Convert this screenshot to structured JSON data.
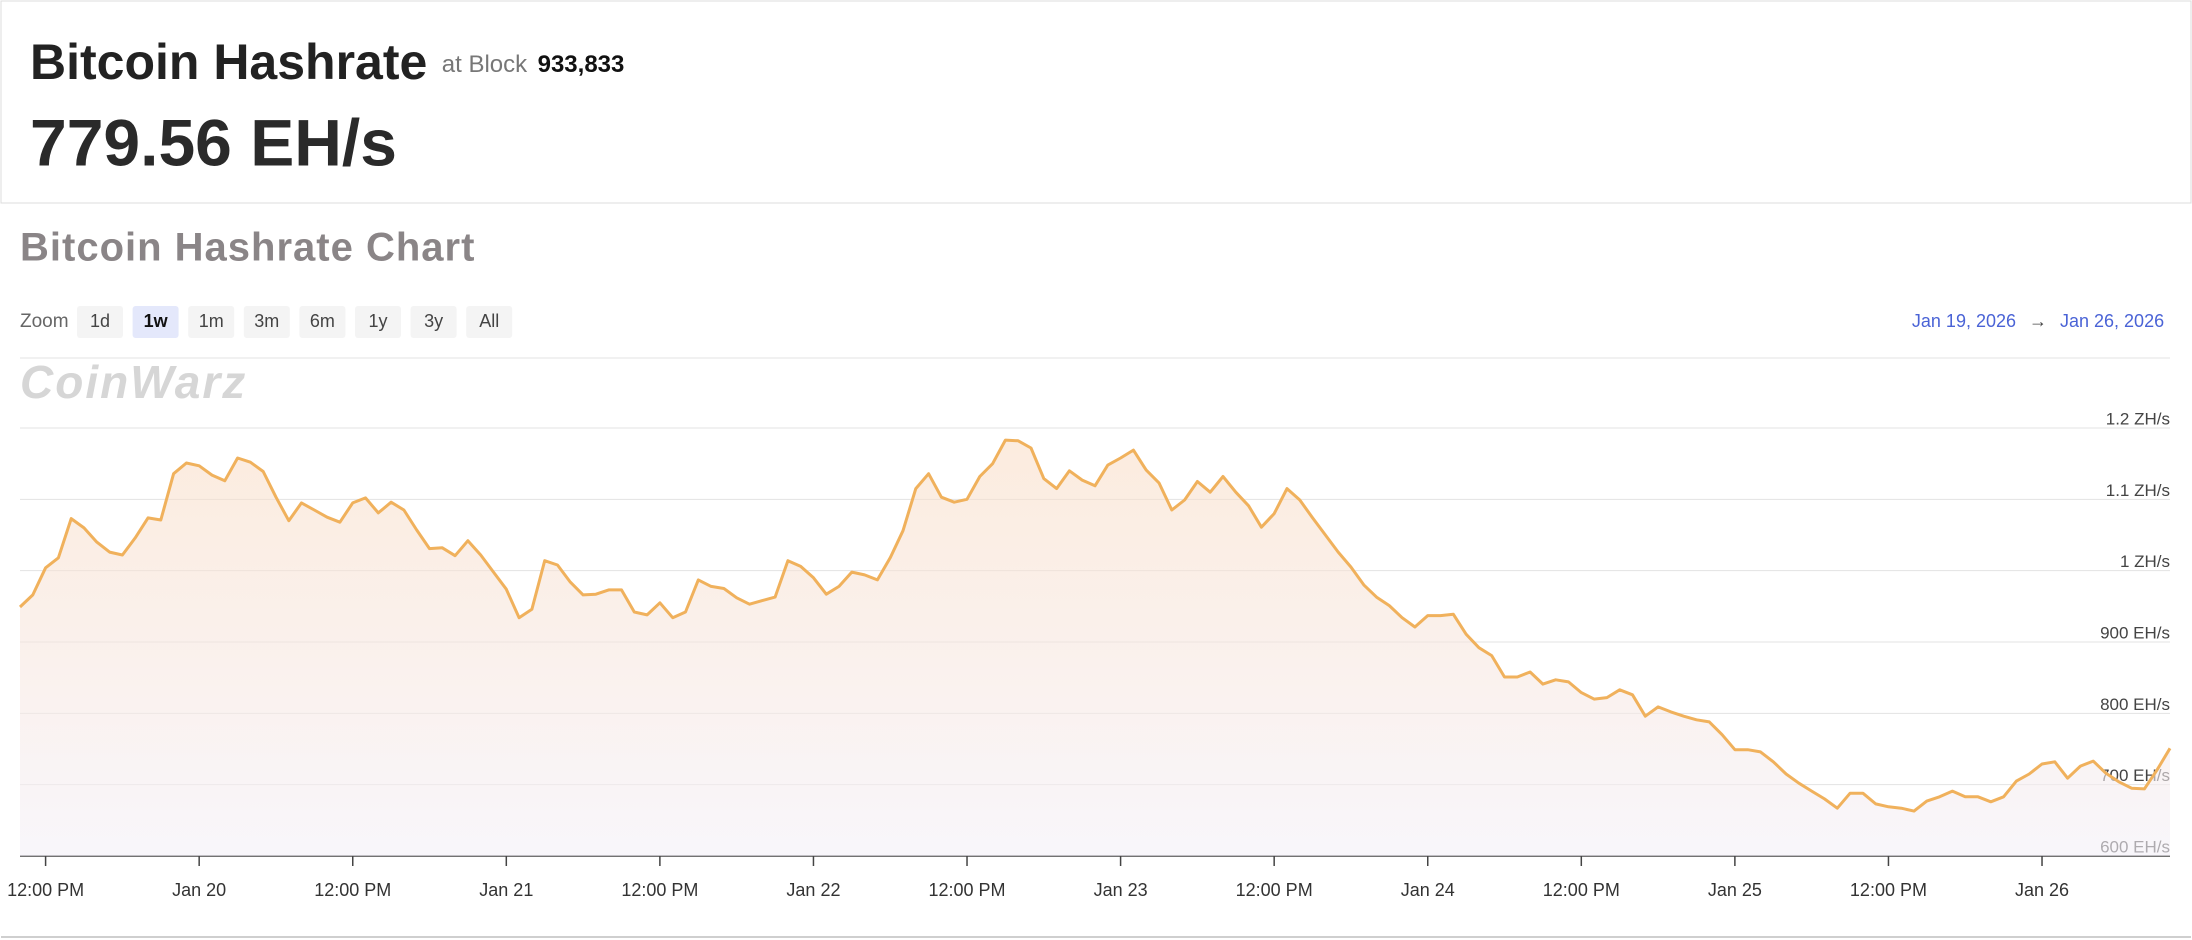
{
  "header": {
    "title": "Bitcoin Hashrate",
    "block_prefix": "at Block",
    "block": "933,833",
    "hashrate": "779.56 EH/s"
  },
  "toolbar": {
    "zoom_label": "Zoom",
    "zoom_options": [
      "1d",
      "1w",
      "1m",
      "3m",
      "6m",
      "1y",
      "3y",
      "All"
    ],
    "selected": "1w",
    "range_from": "Jan 19, 2026",
    "range_arrow": "→",
    "range_to": "Jan 26, 2026"
  },
  "watermark": "CoinWarz",
  "chart_data": {
    "type": "line",
    "title": "Bitcoin Hashrate Chart",
    "x": [
      "2026-01-19T10:00",
      "2026-01-19T11:00",
      "2026-01-19T12:00",
      "2026-01-19T13:00",
      "2026-01-19T14:00",
      "2026-01-19T15:00",
      "2026-01-19T16:00",
      "2026-01-19T17:00",
      "2026-01-19T18:00",
      "2026-01-19T19:00",
      "2026-01-19T20:00",
      "2026-01-19T21:00",
      "2026-01-19T22:00",
      "2026-01-19T23:00",
      "2026-01-20T00:00",
      "2026-01-20T01:00",
      "2026-01-20T02:00",
      "2026-01-20T03:00",
      "2026-01-20T04:00",
      "2026-01-20T05:00",
      "2026-01-20T06:00",
      "2026-01-20T07:00",
      "2026-01-20T08:00",
      "2026-01-20T09:00",
      "2026-01-20T10:00",
      "2026-01-20T11:00",
      "2026-01-20T12:00",
      "2026-01-20T13:00",
      "2026-01-20T14:00",
      "2026-01-20T15:00",
      "2026-01-20T16:00",
      "2026-01-20T17:00",
      "2026-01-20T18:00",
      "2026-01-20T19:00",
      "2026-01-20T20:00",
      "2026-01-20T21:00",
      "2026-01-20T22:00",
      "2026-01-20T23:00",
      "2026-01-21T00:00",
      "2026-01-21T01:00",
      "2026-01-21T02:00",
      "2026-01-21T03:00",
      "2026-01-21T04:00",
      "2026-01-21T05:00",
      "2026-01-21T06:00",
      "2026-01-21T07:00",
      "2026-01-21T08:00",
      "2026-01-21T09:00",
      "2026-01-21T10:00",
      "2026-01-21T11:00",
      "2026-01-21T12:00",
      "2026-01-21T13:00",
      "2026-01-21T14:00",
      "2026-01-21T15:00",
      "2026-01-21T16:00",
      "2026-01-21T17:00",
      "2026-01-21T18:00",
      "2026-01-21T19:00",
      "2026-01-21T20:00",
      "2026-01-21T21:00",
      "2026-01-21T22:00",
      "2026-01-21T23:00",
      "2026-01-22T00:00",
      "2026-01-22T01:00",
      "2026-01-22T02:00",
      "2026-01-22T03:00",
      "2026-01-22T04:00",
      "2026-01-22T05:00",
      "2026-01-22T06:00",
      "2026-01-22T07:00",
      "2026-01-22T08:00",
      "2026-01-22T09:00",
      "2026-01-22T10:00",
      "2026-01-22T11:00",
      "2026-01-22T12:00",
      "2026-01-22T13:00",
      "2026-01-22T14:00",
      "2026-01-22T15:00",
      "2026-01-22T16:00",
      "2026-01-22T17:00",
      "2026-01-22T18:00",
      "2026-01-22T19:00",
      "2026-01-22T20:00",
      "2026-01-22T21:00",
      "2026-01-22T22:00",
      "2026-01-22T23:00",
      "2026-01-23T00:00",
      "2026-01-23T01:00",
      "2026-01-23T02:00",
      "2026-01-23T03:00",
      "2026-01-23T04:00",
      "2026-01-23T05:00",
      "2026-01-23T06:00",
      "2026-01-23T07:00",
      "2026-01-23T08:00",
      "2026-01-23T09:00",
      "2026-01-23T10:00",
      "2026-01-23T11:00",
      "2026-01-23T12:00",
      "2026-01-23T13:00",
      "2026-01-23T14:00",
      "2026-01-23T15:00",
      "2026-01-23T16:00",
      "2026-01-23T17:00",
      "2026-01-23T18:00",
      "2026-01-23T19:00",
      "2026-01-23T20:00",
      "2026-01-23T21:00",
      "2026-01-23T22:00",
      "2026-01-23T23:00",
      "2026-01-24T00:00",
      "2026-01-24T01:00",
      "2026-01-24T02:00",
      "2026-01-24T03:00",
      "2026-01-24T04:00",
      "2026-01-24T05:00",
      "2026-01-24T06:00",
      "2026-01-24T07:00",
      "2026-01-24T08:00",
      "2026-01-24T09:00",
      "2026-01-24T10:00",
      "2026-01-24T11:00",
      "2026-01-24T12:00",
      "2026-01-24T13:00",
      "2026-01-24T14:00",
      "2026-01-24T15:00",
      "2026-01-24T16:00",
      "2026-01-24T17:00",
      "2026-01-24T18:00",
      "2026-01-24T19:00",
      "2026-01-24T20:00",
      "2026-01-24T21:00",
      "2026-01-24T22:00",
      "2026-01-24T23:00",
      "2026-01-25T00:00",
      "2026-01-25T01:00",
      "2026-01-25T02:00",
      "2026-01-25T03:00",
      "2026-01-25T04:00",
      "2026-01-25T05:00",
      "2026-01-25T06:00",
      "2026-01-25T07:00",
      "2026-01-25T08:00",
      "2026-01-25T09:00",
      "2026-01-25T10:00",
      "2026-01-25T11:00",
      "2026-01-25T12:00",
      "2026-01-25T13:00",
      "2026-01-25T14:00",
      "2026-01-25T15:00",
      "2026-01-25T16:00",
      "2026-01-25T17:00",
      "2026-01-25T18:00",
      "2026-01-25T19:00",
      "2026-01-25T20:00",
      "2026-01-25T21:00",
      "2026-01-25T22:00",
      "2026-01-25T23:00",
      "2026-01-26T00:00",
      "2026-01-26T01:00",
      "2026-01-26T02:00",
      "2026-01-26T03:00",
      "2026-01-26T04:00",
      "2026-01-26T05:00",
      "2026-01-26T06:00",
      "2026-01-26T07:00",
      "2026-01-26T08:00",
      "2026-01-26T09:00",
      "2026-01-26T10:00"
    ],
    "values": [
      949,
      966,
      1004,
      1018,
      1073,
      1060,
      1040,
      1026,
      1022,
      1046,
      1074,
      1071,
      1136,
      1151,
      1147,
      1134,
      1126,
      1158,
      1152,
      1139,
      1103,
      1070,
      1095,
      1085,
      1075,
      1068,
      1095,
      1102,
      1081,
      1096,
      1085,
      1057,
      1031,
      1032,
      1021,
      1042,
      1022,
      998,
      974,
      934,
      946,
      1014,
      1008,
      984,
      966,
      967,
      973,
      973,
      942,
      938,
      955,
      934,
      942,
      987,
      978,
      975,
      962,
      953,
      958,
      963,
      1014,
      1006,
      990,
      967,
      978,
      998,
      994,
      987,
      1018,
      1056,
      1115,
      1136,
      1103,
      1096,
      1100,
      1132,
      1150,
      1183,
      1182,
      1172,
      1129,
      1115,
      1140,
      1127,
      1119,
      1148,
      1158,
      1169,
      1141,
      1123,
      1085,
      1099,
      1125,
      1110,
      1132,
      1110,
      1091,
      1061,
      1080,
      1115,
      1099,
      1074,
      1050,
      1026,
      1005,
      980,
      963,
      951,
      934,
      921,
      937,
      937,
      939,
      911,
      892,
      881,
      851,
      851,
      858,
      841,
      847,
      844,
      829,
      820,
      822,
      833,
      826,
      796,
      809,
      802,
      796,
      791,
      788,
      770,
      749,
      749,
      746,
      732,
      715,
      702,
      691,
      680,
      667,
      688,
      688,
      673,
      669,
      667,
      663,
      677,
      683,
      691,
      683,
      683,
      676,
      683,
      705,
      715,
      729,
      732,
      709,
      726,
      733,
      716,
      704,
      695,
      694,
      721,
      751
    ],
    "color": "#f0b15c",
    "xlim": [
      "2026-01-19T10:00",
      "2026-01-26T10:00"
    ],
    "xticks": [
      {
        "value": "2026-01-19T12:00",
        "label": "12:00 PM"
      },
      {
        "value": "2026-01-20T00:00",
        "label": "Jan 20"
      },
      {
        "value": "2026-01-20T12:00",
        "label": "12:00 PM"
      },
      {
        "value": "2026-01-21T00:00",
        "label": "Jan 21"
      },
      {
        "value": "2026-01-21T12:00",
        "label": "12:00 PM"
      },
      {
        "value": "2026-01-22T00:00",
        "label": "Jan 22"
      },
      {
        "value": "2026-01-22T12:00",
        "label": "12:00 PM"
      },
      {
        "value": "2026-01-23T00:00",
        "label": "Jan 23"
      },
      {
        "value": "2026-01-23T12:00",
        "label": "12:00 PM"
      },
      {
        "value": "2026-01-24T00:00",
        "label": "Jan 24"
      },
      {
        "value": "2026-01-24T12:00",
        "label": "12:00 PM"
      },
      {
        "value": "2026-01-25T00:00",
        "label": "Jan 25"
      },
      {
        "value": "2026-01-25T12:00",
        "label": "12:00 PM"
      },
      {
        "value": "2026-01-26T00:00",
        "label": "Jan 26"
      }
    ],
    "ylim": [
      600,
      1200
    ],
    "yticks": [
      {
        "value": 600,
        "label": "600 EH/s"
      },
      {
        "value": 700,
        "label": "700 EH/s"
      },
      {
        "value": 800,
        "label": "800 EH/s"
      },
      {
        "value": 900,
        "label": "900 EH/s"
      },
      {
        "value": 1000,
        "label": "1 ZH/s"
      },
      {
        "value": 1100,
        "label": "1.1 ZH/s"
      },
      {
        "value": 1200,
        "label": "1.2 ZH/s"
      }
    ],
    "grid": true
  }
}
